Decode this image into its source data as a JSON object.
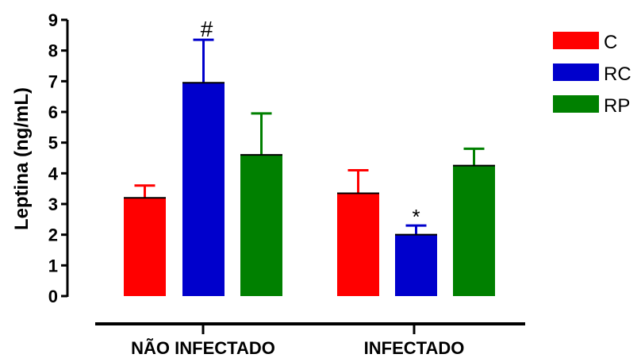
{
  "chart_data": {
    "type": "bar",
    "title": "",
    "ylabel": "Leptina (ng/mL)",
    "xlabel": "",
    "ylim": [
      0,
      9
    ],
    "yticks": [
      "0",
      "1",
      "2",
      "3",
      "4",
      "5",
      "6",
      "7",
      "8",
      "9"
    ],
    "categories": [
      "NÃO INFECTADO",
      "INFECTADO"
    ],
    "legend_position": "right",
    "series": [
      {
        "name": "C",
        "color": "#ff0000",
        "values": [
          3.2,
          3.35
        ],
        "errors": [
          0.4,
          0.75
        ],
        "annotations": [
          "",
          ""
        ]
      },
      {
        "name": "RC",
        "color": "#0000cc",
        "values": [
          6.95,
          2.0
        ],
        "errors": [
          1.4,
          0.3
        ],
        "annotations": [
          "#",
          "*"
        ]
      },
      {
        "name": "RP",
        "color": "#008000",
        "values": [
          4.6,
          4.25
        ],
        "errors": [
          1.35,
          0.55
        ],
        "annotations": [
          "",
          ""
        ]
      }
    ]
  }
}
